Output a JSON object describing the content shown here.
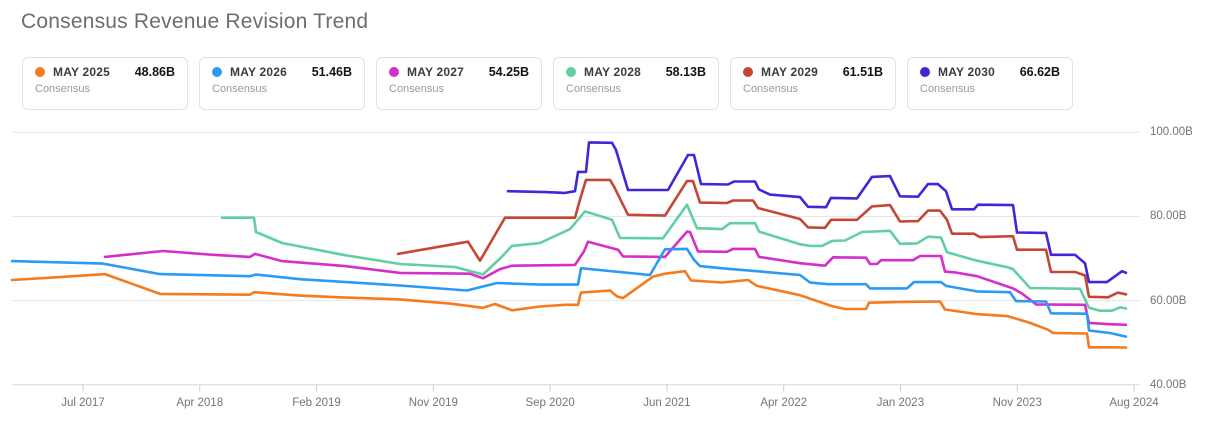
{
  "title": "Consensus Revenue Revision Trend",
  "legend": {
    "sub_label": "Consensus",
    "items": [
      {
        "id": "may-2025",
        "label": "MAY 2025",
        "value": "48.86B",
        "color": "#f47b20"
      },
      {
        "id": "may-2026",
        "label": "MAY 2026",
        "value": "51.46B",
        "color": "#2b9af3"
      },
      {
        "id": "may-2027",
        "label": "MAY 2027",
        "value": "54.25B",
        "color": "#d430c9"
      },
      {
        "id": "may-2028",
        "label": "MAY 2028",
        "value": "58.13B",
        "color": "#62cfa2"
      },
      {
        "id": "may-2029",
        "label": "MAY 2029",
        "value": "61.51B",
        "color": "#c64636"
      },
      {
        "id": "may-2030",
        "label": "MAY 2030",
        "value": "66.62B",
        "color": "#4426d6"
      }
    ]
  },
  "chart_data": {
    "type": "line",
    "unit": "B (billions USD)",
    "title": "Consensus Revenue Revision Trend",
    "x_axis_labels": [
      "Jul 2017",
      "Apr 2018",
      "Feb 2019",
      "Nov 2019",
      "Sep 2020",
      "Jun 2021",
      "Apr 2022",
      "Jan 2023",
      "Nov 2023",
      "Aug 2024"
    ],
    "y_axis": {
      "labels": [
        "100.00B",
        "80.00B",
        "60.00B",
        "40.00B"
      ],
      "values": [
        100,
        80,
        60,
        40
      ],
      "min": 40,
      "max": 100,
      "grid": true
    },
    "legend_position": "top",
    "note": "x = horizontal position (px, time axis Feb 2017 - Aug 2024), v = consensus revenue in billions",
    "series": [
      {
        "name": "MAY 2028 Consensus",
        "color": "#62cfa2",
        "points": [
          [
            222,
            79.7
          ],
          [
            254,
            79.7
          ],
          [
            256,
            76.3
          ],
          [
            282,
            73.7
          ],
          [
            345,
            70.8
          ],
          [
            400,
            68.7
          ],
          [
            455,
            68.0
          ],
          [
            483,
            66.2
          ],
          [
            500,
            70.0
          ],
          [
            512,
            73.0
          ],
          [
            540,
            73.7
          ],
          [
            570,
            77.0
          ],
          [
            585,
            81.2
          ],
          [
            612,
            79.2
          ],
          [
            620,
            74.9
          ],
          [
            663,
            74.8
          ],
          [
            687,
            82.8
          ],
          [
            697,
            77.2
          ],
          [
            722,
            77.0
          ],
          [
            730,
            78.4
          ],
          [
            755,
            78.4
          ],
          [
            759,
            76.4
          ],
          [
            800,
            73.4
          ],
          [
            810,
            73.0
          ],
          [
            822,
            73.0
          ],
          [
            832,
            74.2
          ],
          [
            845,
            74.3
          ],
          [
            862,
            76.3
          ],
          [
            890,
            76.6
          ],
          [
            900,
            73.5
          ],
          [
            917,
            73.6
          ],
          [
            928,
            75.2
          ],
          [
            941,
            75.0
          ],
          [
            947,
            71.5
          ],
          [
            977,
            69.5
          ],
          [
            1008,
            67.9
          ],
          [
            1013,
            67.5
          ],
          [
            1030,
            63.0
          ],
          [
            1080,
            62.8
          ],
          [
            1089,
            58.3
          ],
          [
            1100,
            57.6
          ],
          [
            1112,
            57.6
          ],
          [
            1120,
            58.4
          ],
          [
            1126,
            58.13
          ]
        ]
      },
      {
        "name": "MAY 2029 Consensus",
        "color": "#c64636",
        "points": [
          [
            398,
            71.1
          ],
          [
            468,
            74.0
          ],
          [
            480,
            69.5
          ],
          [
            505,
            79.7
          ],
          [
            575,
            79.7
          ],
          [
            580,
            84.0
          ],
          [
            586,
            88.7
          ],
          [
            610,
            88.7
          ],
          [
            614,
            87.1
          ],
          [
            628,
            80.4
          ],
          [
            665,
            80.2
          ],
          [
            687,
            88.4
          ],
          [
            693,
            88.4
          ],
          [
            700,
            83.3
          ],
          [
            727,
            83.2
          ],
          [
            733,
            83.8
          ],
          [
            753,
            83.8
          ],
          [
            758,
            82.0
          ],
          [
            800,
            79.4
          ],
          [
            808,
            77.4
          ],
          [
            825,
            77.3
          ],
          [
            831,
            79.2
          ],
          [
            857,
            79.2
          ],
          [
            872,
            82.4
          ],
          [
            890,
            82.7
          ],
          [
            900,
            78.8
          ],
          [
            918,
            78.9
          ],
          [
            928,
            81.4
          ],
          [
            940,
            81.4
          ],
          [
            947,
            79.2
          ],
          [
            952,
            75.9
          ],
          [
            974,
            75.9
          ],
          [
            980,
            75.1
          ],
          [
            1013,
            75.3
          ],
          [
            1017,
            72.1
          ],
          [
            1046,
            72.1
          ],
          [
            1051,
            66.8
          ],
          [
            1075,
            66.8
          ],
          [
            1085,
            66.0
          ],
          [
            1089,
            60.9
          ],
          [
            1108,
            60.8
          ],
          [
            1118,
            61.9
          ],
          [
            1126,
            61.51
          ]
        ]
      },
      {
        "name": "MAY 2027 Consensus",
        "color": "#d430c9",
        "points": [
          [
            105,
            70.4
          ],
          [
            163,
            71.8
          ],
          [
            213,
            70.9
          ],
          [
            250,
            70.4
          ],
          [
            255,
            71.1
          ],
          [
            282,
            69.4
          ],
          [
            345,
            68.2
          ],
          [
            400,
            66.6
          ],
          [
            470,
            66.4
          ],
          [
            483,
            65.3
          ],
          [
            500,
            67.5
          ],
          [
            512,
            68.3
          ],
          [
            575,
            68.5
          ],
          [
            584,
            71.7
          ],
          [
            588,
            74.0
          ],
          [
            618,
            72.1
          ],
          [
            623,
            70.5
          ],
          [
            665,
            70.4
          ],
          [
            687,
            76.4
          ],
          [
            690,
            76.3
          ],
          [
            698,
            71.7
          ],
          [
            727,
            71.6
          ],
          [
            733,
            72.3
          ],
          [
            755,
            72.3
          ],
          [
            759,
            70.4
          ],
          [
            800,
            68.9
          ],
          [
            825,
            68.3
          ],
          [
            833,
            70.3
          ],
          [
            866,
            70.2
          ],
          [
            870,
            68.7
          ],
          [
            877,
            68.7
          ],
          [
            881,
            69.6
          ],
          [
            913,
            69.6
          ],
          [
            920,
            70.6
          ],
          [
            941,
            70.6
          ],
          [
            945,
            66.9
          ],
          [
            955,
            66.7
          ],
          [
            977,
            65.8
          ],
          [
            1013,
            62.9
          ],
          [
            1022,
            61.7
          ],
          [
            1036,
            59.1
          ],
          [
            1085,
            59.0
          ],
          [
            1089,
            54.7
          ],
          [
            1110,
            54.4
          ],
          [
            1126,
            54.25
          ]
        ]
      },
      {
        "name": "MAY 2025 Consensus",
        "color": "#f47b20",
        "points": [
          [
            12,
            64.9
          ],
          [
            60,
            65.6
          ],
          [
            105,
            66.3
          ],
          [
            160,
            61.6
          ],
          [
            250,
            61.4
          ],
          [
            254,
            62.0
          ],
          [
            300,
            61.2
          ],
          [
            340,
            60.8
          ],
          [
            400,
            60.3
          ],
          [
            450,
            59.3
          ],
          [
            483,
            58.3
          ],
          [
            495,
            59.2
          ],
          [
            512,
            57.7
          ],
          [
            540,
            58.6
          ],
          [
            565,
            59.0
          ],
          [
            578,
            59.0
          ],
          [
            581,
            61.9
          ],
          [
            610,
            62.4
          ],
          [
            617,
            61.0
          ],
          [
            623,
            60.6
          ],
          [
            653,
            65.7
          ],
          [
            665,
            66.4
          ],
          [
            685,
            67.0
          ],
          [
            691,
            64.8
          ],
          [
            722,
            64.3
          ],
          [
            748,
            64.9
          ],
          [
            757,
            63.5
          ],
          [
            800,
            61.3
          ],
          [
            832,
            58.7
          ],
          [
            845,
            58.0
          ],
          [
            866,
            58.0
          ],
          [
            869,
            59.5
          ],
          [
            900,
            59.7
          ],
          [
            940,
            59.8
          ],
          [
            945,
            57.9
          ],
          [
            977,
            56.8
          ],
          [
            1008,
            56.3
          ],
          [
            1030,
            54.7
          ],
          [
            1048,
            53.1
          ],
          [
            1053,
            52.3
          ],
          [
            1087,
            52.2
          ],
          [
            1089,
            48.9
          ],
          [
            1108,
            48.9
          ],
          [
            1126,
            48.86
          ]
        ]
      },
      {
        "name": "MAY 2026 Consensus",
        "color": "#2b9af3",
        "points": [
          [
            12,
            69.4
          ],
          [
            103,
            68.8
          ],
          [
            160,
            66.3
          ],
          [
            250,
            65.8
          ],
          [
            256,
            66.2
          ],
          [
            300,
            65.1
          ],
          [
            340,
            64.5
          ],
          [
            400,
            63.6
          ],
          [
            467,
            62.4
          ],
          [
            497,
            64.2
          ],
          [
            540,
            63.8
          ],
          [
            578,
            63.8
          ],
          [
            581,
            67.7
          ],
          [
            650,
            66.1
          ],
          [
            665,
            72.2
          ],
          [
            687,
            72.3
          ],
          [
            694,
            69.7
          ],
          [
            700,
            68.2
          ],
          [
            725,
            67.6
          ],
          [
            757,
            67.0
          ],
          [
            800,
            66.1
          ],
          [
            810,
            64.3
          ],
          [
            828,
            63.9
          ],
          [
            866,
            63.9
          ],
          [
            870,
            62.9
          ],
          [
            907,
            62.9
          ],
          [
            914,
            64.4
          ],
          [
            941,
            64.4
          ],
          [
            946,
            63.5
          ],
          [
            977,
            62.2
          ],
          [
            1010,
            62.0
          ],
          [
            1016,
            59.9
          ],
          [
            1046,
            59.8
          ],
          [
            1051,
            57.0
          ],
          [
            1087,
            56.9
          ],
          [
            1089,
            52.9
          ],
          [
            1110,
            52.3
          ],
          [
            1126,
            51.46
          ]
        ]
      },
      {
        "name": "MAY 2030 Consensus",
        "color": "#4426d6",
        "points": [
          [
            508,
            86.0
          ],
          [
            545,
            85.8
          ],
          [
            565,
            85.6
          ],
          [
            575,
            86.0
          ],
          [
            578,
            90.6
          ],
          [
            586,
            90.6
          ],
          [
            589,
            97.6
          ],
          [
            612,
            97.5
          ],
          [
            616,
            95.8
          ],
          [
            628,
            86.3
          ],
          [
            668,
            86.3
          ],
          [
            688,
            94.6
          ],
          [
            694,
            94.6
          ],
          [
            701,
            87.7
          ],
          [
            728,
            87.6
          ],
          [
            734,
            88.3
          ],
          [
            755,
            88.3
          ],
          [
            759,
            86.4
          ],
          [
            770,
            85.2
          ],
          [
            800,
            84.6
          ],
          [
            808,
            82.3
          ],
          [
            826,
            82.2
          ],
          [
            831,
            84.4
          ],
          [
            857,
            84.3
          ],
          [
            872,
            89.4
          ],
          [
            890,
            89.6
          ],
          [
            900,
            84.8
          ],
          [
            918,
            84.7
          ],
          [
            928,
            87.7
          ],
          [
            938,
            87.7
          ],
          [
            946,
            86.0
          ],
          [
            952,
            81.7
          ],
          [
            974,
            81.7
          ],
          [
            978,
            82.8
          ],
          [
            1013,
            82.7
          ],
          [
            1017,
            76.2
          ],
          [
            1046,
            76.1
          ],
          [
            1051,
            70.9
          ],
          [
            1075,
            70.9
          ],
          [
            1085,
            68.9
          ],
          [
            1089,
            64.4
          ],
          [
            1107,
            64.4
          ],
          [
            1122,
            67.0
          ],
          [
            1126,
            66.62
          ]
        ]
      }
    ]
  }
}
